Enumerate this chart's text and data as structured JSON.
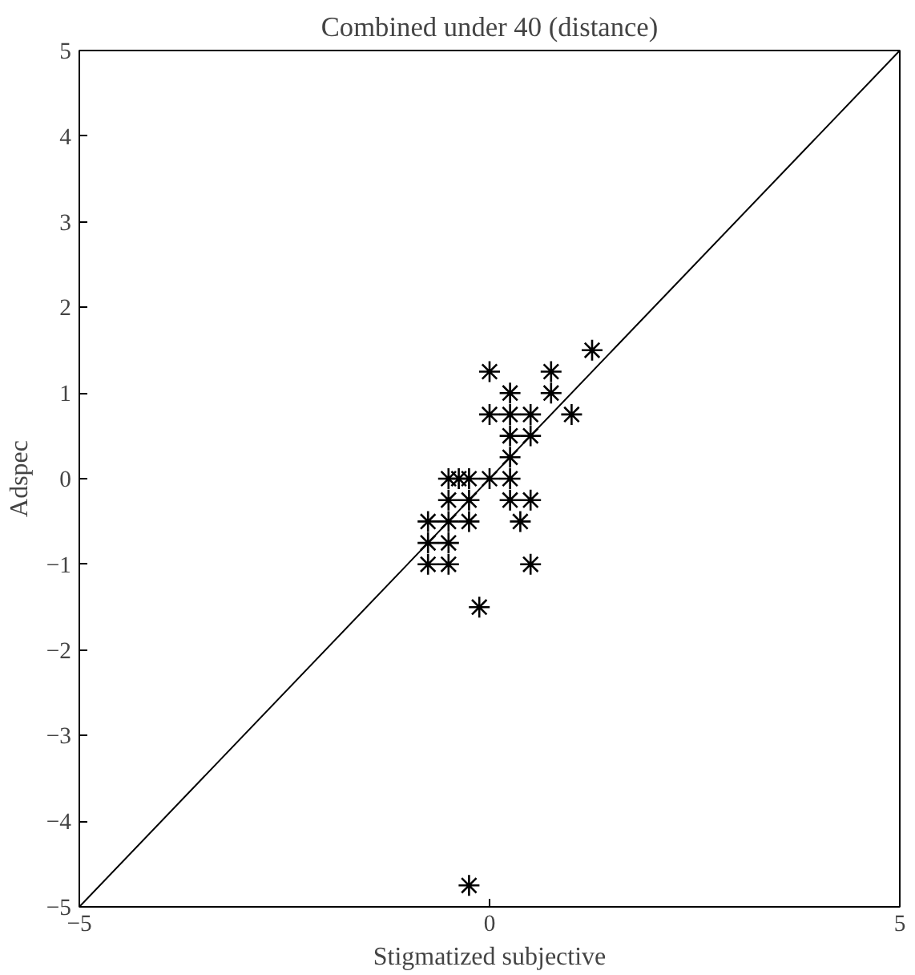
{
  "chart_data": {
    "type": "scatter",
    "title": "Combined under 40 (distance)",
    "xlabel": "Stigmatized subjective",
    "ylabel": "Adspec",
    "xlim": [
      -5,
      5
    ],
    "ylim": [
      -5,
      5
    ],
    "xticks": [
      -5,
      0,
      5
    ],
    "yticks": [
      -5,
      -4,
      -3,
      -2,
      -1,
      0,
      1,
      2,
      3,
      4,
      5
    ],
    "grid": false,
    "series": [
      {
        "color": "#000000",
        "marker": "cross",
        "x": [
          1.25,
          0,
          0.75,
          0.75,
          0.25,
          0,
          0.25,
          0.5,
          1.0,
          0.25,
          0.5,
          0.25,
          -0.5,
          -0.375,
          -0.25,
          0,
          0.25,
          -0.5,
          -0.25,
          0.25,
          0.5,
          -0.75,
          -0.5,
          -0.25,
          0.375,
          -0.75,
          -0.5,
          -0.75,
          -0.5,
          0.5,
          -0.125,
          -0.25
        ],
        "values": [
          1.5,
          1.25,
          1.25,
          1.0,
          1.0,
          0.75,
          0.75,
          0.75,
          0.75,
          0.5,
          0.5,
          0.25,
          0,
          0,
          0,
          0,
          0,
          -0.25,
          -0.25,
          -0.25,
          -0.25,
          -0.5,
          -0.5,
          -0.5,
          -0.5,
          -0.75,
          -0.75,
          -1,
          -1,
          -1,
          -1.5,
          -4.75
        ]
      },
      {
        "type": "line",
        "color": "#000000",
        "x": [
          -5,
          5
        ],
        "values": [
          -5,
          5
        ],
        "line_style": "solid"
      }
    ]
  }
}
